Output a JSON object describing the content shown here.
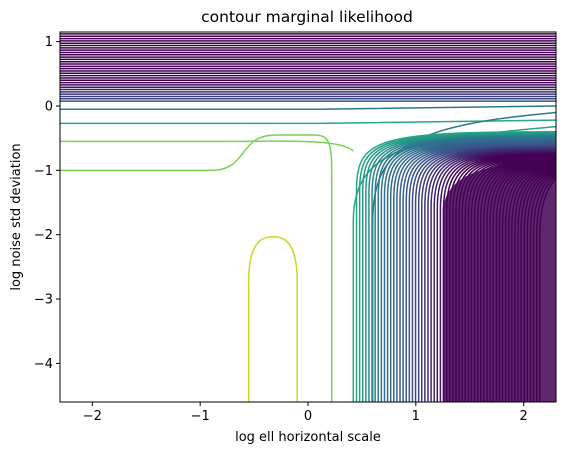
{
  "chart_data": {
    "type": "contour",
    "title": "contour marginal likelihood",
    "xlabel": "log ell horizontal scale",
    "ylabel": "log noise std deviation",
    "xlim": [
      -2.3,
      2.3
    ],
    "ylim": [
      -4.6,
      1.15
    ],
    "xticks": [
      -2,
      -1,
      0,
      1,
      2
    ],
    "xtick_labels": [
      "−2",
      "−1",
      "0",
      "1",
      "2"
    ],
    "yticks": [
      -4,
      -3,
      -2,
      -1,
      0,
      1
    ],
    "ytick_labels": [
      "−4",
      "−3",
      "−2",
      "−1",
      "0",
      "1"
    ],
    "colormap": "viridis",
    "grid": false,
    "legend": "none",
    "levels": [
      {
        "kind": "loop",
        "color": "#bade28",
        "x_left": -0.55,
        "x_right": -0.1,
        "y_top": -2.03
      },
      {
        "kind": "ell",
        "color": "#7ad151",
        "y_arm": -1.0,
        "x_vertical": 0.22,
        "x_end": -2.3
      },
      {
        "kind": "hyper",
        "color": "#22a884",
        "y_arm": -0.27,
        "x_vertical": 0.42,
        "y_cut": -4.6
      },
      {
        "kind": "hyper",
        "color": "#2a788e",
        "y_arm": -0.05,
        "x_vertical": 0.6,
        "y_cut": -4.6
      }
    ],
    "dense_region": {
      "color": "#440154",
      "x_from": 0.9,
      "y_from": -0.7
    }
  }
}
